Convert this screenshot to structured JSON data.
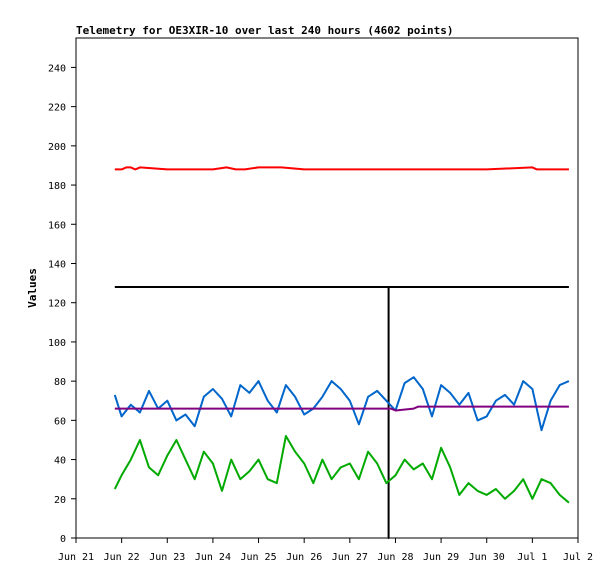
{
  "chart_data": {
    "type": "line",
    "title": "Telemetry for OE3XIR-10 over last 240 hours (4602 points)",
    "ylabel": "Values",
    "xlabel": "",
    "ylim": [
      0,
      255
    ],
    "yticks": [
      0,
      20,
      40,
      60,
      80,
      100,
      120,
      140,
      160,
      180,
      200,
      220,
      240
    ],
    "xlim": [
      0,
      11
    ],
    "xticks": [
      {
        "x": 0,
        "label": "Jun 21"
      },
      {
        "x": 1,
        "label": "Jun 22"
      },
      {
        "x": 2,
        "label": "Jun 23"
      },
      {
        "x": 3,
        "label": "Jun 24"
      },
      {
        "x": 4,
        "label": "Jun 25"
      },
      {
        "x": 5,
        "label": "Jun 26"
      },
      {
        "x": 6,
        "label": "Jun 27"
      },
      {
        "x": 7,
        "label": "Jun 28"
      },
      {
        "x": 8,
        "label": "Jun 29"
      },
      {
        "x": 9,
        "label": "Jun 30"
      },
      {
        "x": 10,
        "label": "Jul 1"
      },
      {
        "x": 11,
        "label": "Jul 2"
      }
    ],
    "grid": false,
    "series": [
      {
        "color": "#ff0000",
        "x": [
          0.85,
          1.0,
          1.1,
          1.2,
          1.3,
          1.4,
          2.0,
          3.0,
          3.3,
          3.5,
          3.7,
          4.0,
          4.3,
          4.5,
          5.0,
          5.5,
          6.0,
          7.0,
          8.0,
          9.0,
          10.0,
          10.1,
          10.8
        ],
        "y": [
          188,
          188,
          189,
          189,
          188,
          189,
          188,
          188,
          189,
          188,
          188,
          189,
          189,
          189,
          188,
          188,
          188,
          188,
          188,
          188,
          189,
          188,
          188
        ]
      },
      {
        "color": "#000000",
        "x": [
          0.85,
          6.85,
          6.85,
          6.85,
          10.8
        ],
        "y": [
          128,
          128,
          0,
          128,
          128
        ]
      },
      {
        "color": "#0066cc",
        "x": [
          0.85,
          1.0,
          1.2,
          1.4,
          1.6,
          1.8,
          2.0,
          2.2,
          2.4,
          2.6,
          2.8,
          3.0,
          3.2,
          3.4,
          3.6,
          3.8,
          4.0,
          4.2,
          4.4,
          4.6,
          4.8,
          5.0,
          5.2,
          5.4,
          5.6,
          5.8,
          6.0,
          6.2,
          6.4,
          6.6,
          6.8,
          7.0,
          7.2,
          7.4,
          7.6,
          7.8,
          8.0,
          8.2,
          8.4,
          8.6,
          8.8,
          9.0,
          9.2,
          9.4,
          9.6,
          9.8,
          10.0,
          10.2,
          10.4,
          10.6,
          10.8
        ],
        "y": [
          73,
          62,
          68,
          64,
          75,
          66,
          70,
          60,
          63,
          57,
          72,
          76,
          71,
          62,
          78,
          74,
          80,
          70,
          64,
          78,
          72,
          63,
          66,
          72,
          80,
          76,
          70,
          58,
          72,
          75,
          70,
          65,
          79,
          82,
          76,
          62,
          78,
          74,
          68,
          74,
          60,
          62,
          70,
          73,
          68,
          80,
          76,
          55,
          70,
          78,
          80
        ]
      },
      {
        "color": "#800080",
        "x": [
          0.85,
          2.5,
          4.5,
          6.9,
          7.0,
          7.4,
          7.5,
          9.0,
          10.8
        ],
        "y": [
          66,
          66,
          66,
          66,
          65,
          66,
          67,
          67,
          67
        ]
      },
      {
        "color": "#00aa00",
        "x": [
          0.85,
          1.0,
          1.2,
          1.4,
          1.6,
          1.8,
          2.0,
          2.2,
          2.4,
          2.6,
          2.8,
          3.0,
          3.2,
          3.4,
          3.6,
          3.8,
          4.0,
          4.2,
          4.4,
          4.6,
          4.8,
          5.0,
          5.2,
          5.4,
          5.6,
          5.8,
          6.0,
          6.2,
          6.4,
          6.6,
          6.8,
          7.0,
          7.2,
          7.4,
          7.6,
          7.8,
          8.0,
          8.2,
          8.4,
          8.6,
          8.8,
          9.0,
          9.2,
          9.4,
          9.6,
          9.8,
          10.0,
          10.2,
          10.4,
          10.6,
          10.8
        ],
        "y": [
          25,
          32,
          40,
          50,
          36,
          32,
          42,
          50,
          40,
          30,
          44,
          38,
          24,
          40,
          30,
          34,
          40,
          30,
          28,
          52,
          44,
          38,
          28,
          40,
          30,
          36,
          38,
          30,
          44,
          38,
          28,
          32,
          40,
          35,
          38,
          30,
          46,
          36,
          22,
          28,
          24,
          22,
          25,
          20,
          24,
          30,
          20,
          30,
          28,
          22,
          18
        ]
      }
    ]
  }
}
